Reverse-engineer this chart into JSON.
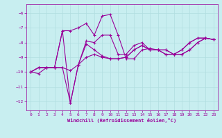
{
  "xlabel": "Windchill (Refroidissement éolien,°C)",
  "bg_color": "#c8eef0",
  "grid_color": "#b0dde0",
  "line_color": "#990099",
  "xlim": [
    -0.5,
    23.5
  ],
  "ylim": [
    -12.6,
    -5.4
  ],
  "xticks": [
    0,
    1,
    2,
    3,
    4,
    5,
    6,
    7,
    8,
    9,
    10,
    11,
    12,
    13,
    14,
    15,
    16,
    17,
    18,
    19,
    20,
    21,
    22,
    23
  ],
  "yticks": [
    -12,
    -11,
    -10,
    -9,
    -8,
    -7,
    -6
  ],
  "series": [
    [
      0,
      -10.0,
      1,
      -10.1,
      2,
      -9.7,
      3,
      -9.7,
      4,
      -9.7,
      5,
      -12.1,
      6,
      -9.5,
      7,
      -8.1,
      8,
      -8.5,
      9,
      -8.9,
      10,
      -9.1,
      11,
      -9.1,
      12,
      -9.0,
      13,
      -8.5,
      14,
      -8.2,
      15,
      -8.5,
      16,
      -8.5,
      17,
      -8.8,
      18,
      -8.8,
      19,
      -8.5,
      20,
      -8.0,
      21,
      -7.7,
      22,
      -7.7,
      23,
      -7.8
    ],
    [
      0,
      -10.0,
      1,
      -9.7,
      2,
      -9.7,
      3,
      -9.7,
      4,
      -9.7,
      5,
      -9.9,
      6,
      -9.5,
      7,
      -9.0,
      8,
      -8.8,
      9,
      -9.0,
      10,
      -9.1,
      11,
      -9.1,
      12,
      -9.0,
      13,
      -8.5,
      14,
      -8.2,
      15,
      -8.5,
      16,
      -8.5,
      17,
      -8.8,
      18,
      -8.8,
      19,
      -8.5,
      20,
      -8.0,
      21,
      -7.7,
      22,
      -7.7,
      23,
      -7.8
    ],
    [
      0,
      -10.0,
      1,
      -9.7,
      2,
      -9.7,
      3,
      -9.7,
      4,
      -7.2,
      5,
      -7.2,
      6,
      -7.0,
      7,
      -6.7,
      8,
      -7.5,
      9,
      -6.2,
      10,
      -6.1,
      11,
      -7.5,
      12,
      -9.1,
      13,
      -9.1,
      14,
      -8.5,
      15,
      -8.4,
      16,
      -8.5,
      17,
      -8.5,
      18,
      -8.8,
      19,
      -8.8,
      20,
      -8.5,
      21,
      -8.0,
      22,
      -7.7,
      23,
      -7.8
    ],
    [
      0,
      -10.0,
      1,
      -9.7,
      2,
      -9.7,
      3,
      -9.7,
      4,
      -7.2,
      5,
      -12.1,
      6,
      -9.5,
      7,
      -7.9,
      8,
      -8.0,
      9,
      -7.5,
      10,
      -7.5,
      11,
      -8.8,
      12,
      -8.8,
      13,
      -8.2,
      14,
      -8.0,
      15,
      -8.5,
      16,
      -8.5,
      17,
      -8.5,
      18,
      -8.8,
      19,
      -8.8,
      20,
      -8.5,
      21,
      -8.0,
      22,
      -7.7,
      23,
      -7.8
    ]
  ]
}
